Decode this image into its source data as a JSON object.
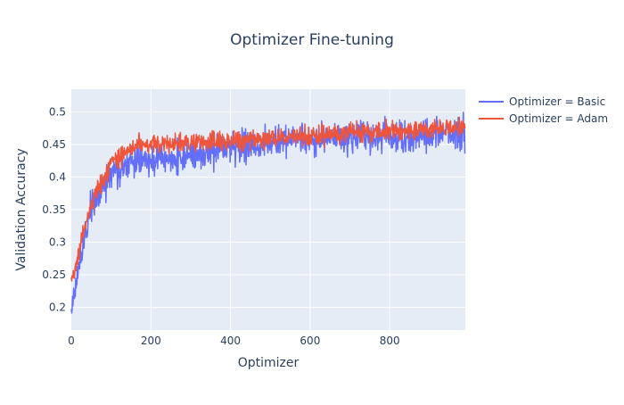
{
  "chart_data": {
    "type": "line",
    "title": "Optimizer Fine-tuning",
    "xlabel": "Optimizer",
    "ylabel": "Validation Accuracy",
    "xlim": [
      0,
      990
    ],
    "ylim": [
      0.165,
      0.535
    ],
    "x_ticks": [
      0,
      200,
      400,
      600,
      800
    ],
    "y_ticks": [
      0.2,
      0.25,
      0.3,
      0.35,
      0.4,
      0.45,
      0.5
    ],
    "grid": true,
    "legend_position": "top-right",
    "colors": {
      "plot_bg": "#e5ecf6",
      "grid": "#ffffff",
      "text": "#2a3f5f",
      "basic": "#636efa",
      "adam": "#ef553b"
    },
    "series": [
      {
        "name": "Optimizer = Basic",
        "color": "#636efa",
        "trend": [
          [
            0,
            0.2
          ],
          [
            50,
            0.36
          ],
          [
            100,
            0.4
          ],
          [
            150,
            0.42
          ],
          [
            200,
            0.425
          ],
          [
            300,
            0.435
          ],
          [
            400,
            0.445
          ],
          [
            500,
            0.452
          ],
          [
            600,
            0.457
          ],
          [
            700,
            0.46
          ],
          [
            800,
            0.463
          ],
          [
            900,
            0.465
          ],
          [
            990,
            0.466
          ]
        ],
        "noise": 0.037,
        "clip": [
          0.18,
          0.515
        ],
        "seed": 17
      },
      {
        "name": "Optimizer = Adam",
        "color": "#ef553b",
        "trend": [
          [
            0,
            0.24
          ],
          [
            50,
            0.36
          ],
          [
            100,
            0.42
          ],
          [
            150,
            0.445
          ],
          [
            200,
            0.45
          ],
          [
            300,
            0.452
          ],
          [
            400,
            0.456
          ],
          [
            500,
            0.46
          ],
          [
            600,
            0.464
          ],
          [
            700,
            0.468
          ],
          [
            800,
            0.471
          ],
          [
            900,
            0.473
          ],
          [
            990,
            0.475
          ]
        ],
        "noise": 0.022,
        "clip": [
          0.21,
          0.505
        ],
        "seed": 42
      }
    ]
  }
}
